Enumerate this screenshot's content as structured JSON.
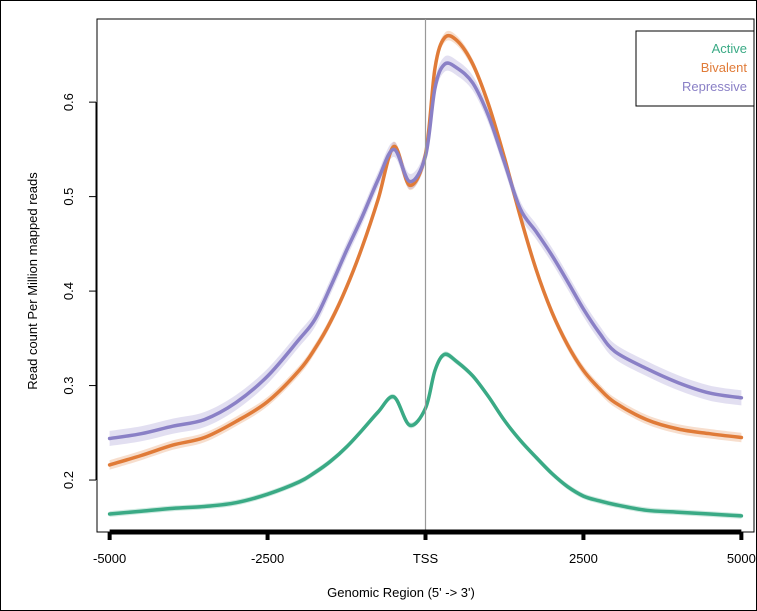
{
  "chart_data": {
    "type": "line",
    "title": "",
    "xlabel": "Genomic Region (5' -> 3')",
    "ylabel": "Read count Per Million mapped reads",
    "xlim": [
      -5200,
      5200
    ],
    "ylim": [
      0.145,
      0.688
    ],
    "x_ticks": [
      {
        "value": -5000,
        "label": "-5000"
      },
      {
        "value": -2500,
        "label": "-2500"
      },
      {
        "value": 0,
        "label": "TSS"
      },
      {
        "value": 2500,
        "label": "2500"
      },
      {
        "value": 5000,
        "label": "5000"
      }
    ],
    "y_ticks": [
      {
        "value": 0.2,
        "label": "0.2"
      },
      {
        "value": 0.3,
        "label": "0.3"
      },
      {
        "value": 0.4,
        "label": "0.4"
      },
      {
        "value": 0.5,
        "label": "0.5"
      },
      {
        "value": 0.6,
        "label": "0.6"
      }
    ],
    "vline_x": 0,
    "legend_position": "top-right",
    "x": [
      -5000,
      -4500,
      -4000,
      -3500,
      -3000,
      -2500,
      -2000,
      -1750,
      -1500,
      -1250,
      -1000,
      -750,
      -500,
      -250,
      0,
      150,
      300,
      500,
      750,
      1000,
      1250,
      1500,
      1750,
      2000,
      2250,
      2500,
      2750,
      3000,
      3500,
      4000,
      4500,
      5000
    ],
    "series": [
      {
        "name": "Active",
        "color": "#3aaa85",
        "values": [
          0.164,
          0.167,
          0.17,
          0.172,
          0.176,
          0.185,
          0.198,
          0.208,
          0.22,
          0.235,
          0.253,
          0.272,
          0.288,
          0.258,
          0.276,
          0.316,
          0.333,
          0.325,
          0.31,
          0.288,
          0.263,
          0.242,
          0.224,
          0.207,
          0.193,
          0.183,
          0.178,
          0.174,
          0.168,
          0.166,
          0.164,
          0.162
        ],
        "band": 0.003
      },
      {
        "name": "Bivalent",
        "color": "#e07b38",
        "values": [
          0.216,
          0.226,
          0.237,
          0.245,
          0.262,
          0.283,
          0.316,
          0.339,
          0.368,
          0.404,
          0.447,
          0.497,
          0.553,
          0.512,
          0.545,
          0.636,
          0.668,
          0.665,
          0.64,
          0.597,
          0.541,
          0.479,
          0.423,
          0.378,
          0.343,
          0.316,
          0.297,
          0.282,
          0.264,
          0.254,
          0.249,
          0.245
        ],
        "band": 0.005
      },
      {
        "name": "Repressive",
        "color": "#8a80c6",
        "values": [
          0.244,
          0.249,
          0.257,
          0.264,
          0.282,
          0.31,
          0.349,
          0.37,
          0.405,
          0.443,
          0.479,
          0.518,
          0.55,
          0.516,
          0.543,
          0.615,
          0.64,
          0.636,
          0.62,
          0.585,
          0.536,
          0.487,
          0.463,
          0.438,
          0.41,
          0.381,
          0.356,
          0.336,
          0.318,
          0.303,
          0.292,
          0.287
        ],
        "band": 0.008
      }
    ]
  }
}
